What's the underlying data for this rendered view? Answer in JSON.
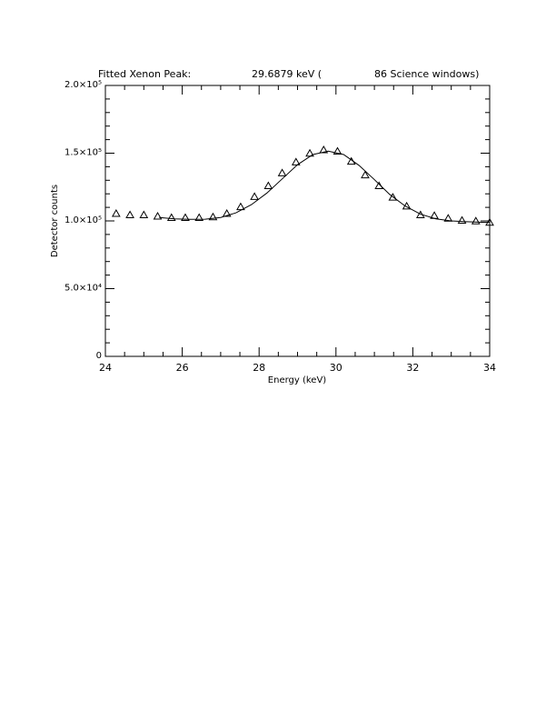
{
  "chart_data": {
    "type": "scatter",
    "title_parts": [
      "Fitted Xenon Peak:",
      "29.6879 keV (",
      "86 Science windows)"
    ],
    "x_label": "Energy (keV)",
    "y_label": "Detector counts",
    "xlim": [
      24,
      34
    ],
    "ylim": [
      0,
      200000
    ],
    "xticks": [
      24,
      26,
      28,
      30,
      32,
      34
    ],
    "yticks": [
      {
        "value": 0,
        "label": "0"
      },
      {
        "value": 50000,
        "label": "5.0×10⁴"
      },
      {
        "value": 100000,
        "label": "1.0×10⁵"
      },
      {
        "value": 150000,
        "label": "1.5×10⁵"
      },
      {
        "value": 200000,
        "label": "2.0×10⁵"
      }
    ],
    "xminorticks": [
      24.5,
      25,
      25.5,
      26.5,
      27,
      27.5,
      28.5,
      29,
      29.5,
      30.5,
      31,
      31.5,
      32.5,
      33,
      33.5
    ],
    "yminorticks": [
      10000,
      20000,
      30000,
      40000,
      60000,
      70000,
      80000,
      90000,
      110000,
      120000,
      130000,
      140000,
      160000,
      170000,
      180000,
      190000
    ],
    "color": "#000000",
    "series": [
      {
        "type": "scatter",
        "x": [
          24.28,
          24.64,
          25.0,
          25.36,
          25.72,
          26.08,
          26.44,
          26.8,
          27.16,
          27.52,
          27.88,
          28.24,
          28.6,
          28.96,
          29.32,
          29.68,
          30.04,
          30.4,
          30.76,
          31.12,
          31.48,
          31.84,
          32.2,
          32.56,
          32.92,
          33.28,
          33.64,
          34.0
        ],
        "values": [
          105000,
          104000,
          104000,
          103000,
          102000,
          102000,
          102000,
          102500,
          105000,
          110000,
          117500,
          125500,
          135000,
          143000,
          149500,
          152000,
          151000,
          143500,
          133500,
          125500,
          117000,
          110500,
          104000,
          103500,
          101500,
          100000,
          99500,
          98500
        ]
      },
      {
        "type": "line",
        "x": [
          25.4,
          25.8,
          26.2,
          26.6,
          27.0,
          27.4,
          27.8,
          28.2,
          28.6,
          29.0,
          29.4,
          29.8,
          30.2,
          30.6,
          31.0,
          31.4,
          31.8,
          32.2,
          32.6,
          33.0,
          33.4,
          33.8,
          34.0
        ],
        "values": [
          102500,
          101500,
          101200,
          101300,
          102500,
          106000,
          112000,
          120500,
          131000,
          141500,
          149000,
          151500,
          149000,
          141000,
          130500,
          119500,
          111000,
          105000,
          101500,
          100000,
          99400,
          99000,
          98900
        ]
      }
    ]
  }
}
